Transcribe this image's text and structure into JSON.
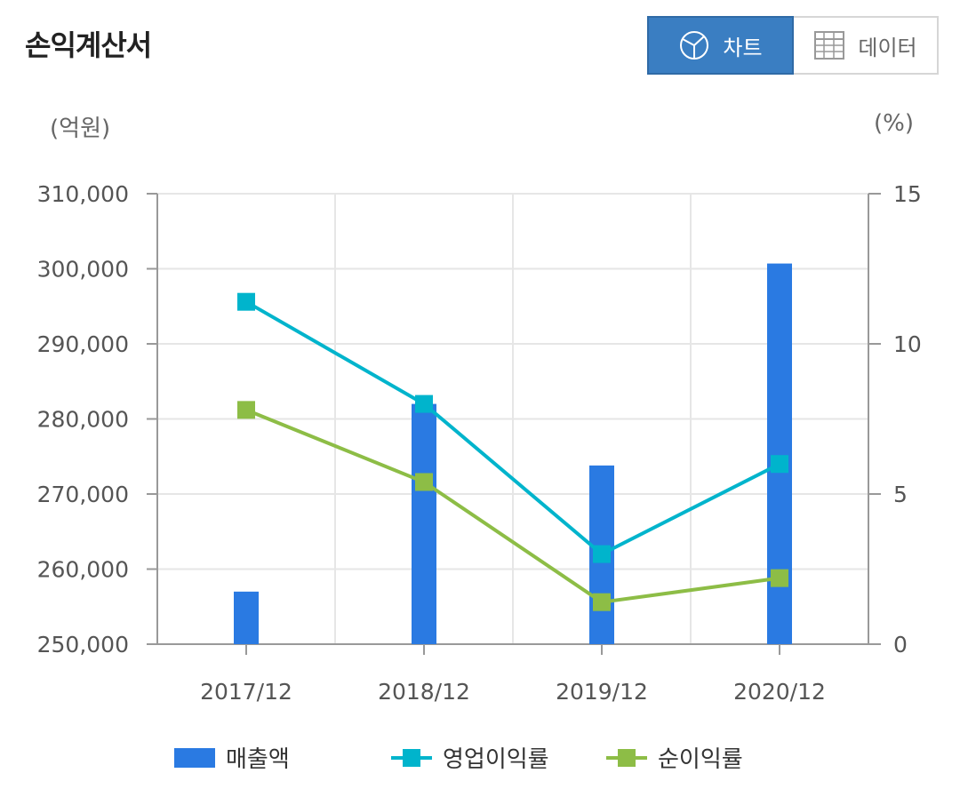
{
  "page": {
    "title": "손익계산서"
  },
  "toggle": {
    "chart_label": "차트",
    "data_label": "데이터",
    "selected": "chart"
  },
  "units": {
    "left": "(억원)",
    "right": "(%)"
  },
  "colors": {
    "bar": "#2a7ae2",
    "operating": "#00b4cc",
    "net": "#8dbd46",
    "toggle_active": "#3a7ec2"
  },
  "chart_data": {
    "type": "bar",
    "categories": [
      "2017/12",
      "2018/12",
      "2019/12",
      "2020/12"
    ],
    "y_left": {
      "min": 250000,
      "max": 310000,
      "ticks": [
        "250,000",
        "260,000",
        "270,000",
        "280,000",
        "290,000",
        "300,000",
        "310,000"
      ],
      "unit": "(억원)"
    },
    "y_right": {
      "min": 0,
      "max": 15,
      "ticks": [
        "0",
        "5",
        "10",
        "15"
      ],
      "unit": "(%)"
    },
    "series": [
      {
        "name": "매출액",
        "type": "bar",
        "axis": "left",
        "values": [
          257000,
          282000,
          273800,
          300700
        ]
      },
      {
        "name": "영업이익률",
        "type": "line",
        "axis": "right",
        "values": [
          11.4,
          8.0,
          3.0,
          6.0
        ]
      },
      {
        "name": "순이익률",
        "type": "line",
        "axis": "right",
        "values": [
          7.8,
          5.4,
          1.4,
          2.2
        ]
      }
    ],
    "grid": true,
    "legend_position": "bottom"
  }
}
